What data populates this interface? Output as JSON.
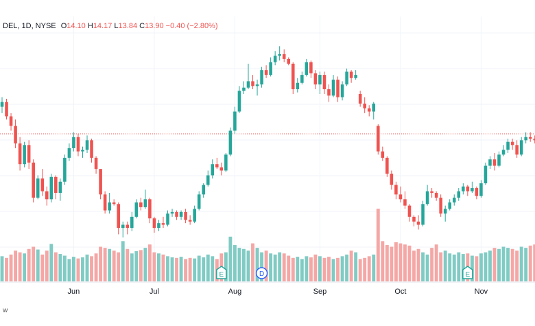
{
  "legend": {
    "symbol": "DEL, 1D, NYSE",
    "o_label": "O",
    "o_value": "14.10",
    "h_label": "H",
    "h_value": "14.17",
    "l_label": "L",
    "l_value": "13.84",
    "c_label": "C",
    "c_value": "13.90",
    "change": "−0.40 (−2.80%)"
  },
  "brand_text": "w",
  "colors": {
    "up": "#26a69a",
    "down": "#ef5350",
    "up_volume": "#80cbc4",
    "down_volume": "#f4a7a5",
    "grid": "#f0f3fa",
    "price_line": "#ef5350",
    "axis_text": "#131722"
  },
  "chart_data": {
    "type": "candlestick",
    "y_range": [
      13.0,
      26.0
    ],
    "price_line": 20.1,
    "x_axis": {
      "ticks": [
        {
          "label": "Jun",
          "index": 16
        },
        {
          "label": "Jul",
          "index": 34
        },
        {
          "label": "Aug",
          "index": 52
        },
        {
          "label": "Sep",
          "index": 71
        },
        {
          "label": "Oct",
          "index": 89
        },
        {
          "label": "Nov",
          "index": 107
        }
      ]
    },
    "markers": [
      {
        "label": "E",
        "index": 49
      },
      {
        "label": "D",
        "index": 58
      },
      {
        "label": "E",
        "index": 104
      }
    ],
    "ohlc": [
      [
        21.8,
        22.4,
        21.4,
        22.1
      ],
      [
        22.1,
        22.3,
        21.0,
        21.2
      ],
      [
        21.2,
        21.4,
        20.3,
        20.6
      ],
      [
        20.6,
        21.0,
        19.2,
        19.5
      ],
      [
        19.5,
        19.9,
        17.8,
        18.2
      ],
      [
        18.2,
        19.6,
        18.0,
        19.4
      ],
      [
        19.4,
        19.7,
        17.9,
        18.3
      ],
      [
        18.3,
        18.5,
        15.8,
        16.1
      ],
      [
        16.1,
        17.5,
        16.0,
        17.3
      ],
      [
        17.3,
        17.9,
        16.2,
        16.5
      ],
      [
        16.5,
        16.8,
        15.6,
        16.0
      ],
      [
        16.0,
        17.6,
        15.8,
        17.4
      ],
      [
        17.4,
        17.5,
        16.0,
        16.4
      ],
      [
        16.4,
        17.3,
        15.9,
        17.1
      ],
      [
        17.1,
        18.8,
        16.9,
        18.6
      ],
      [
        18.6,
        19.5,
        18.4,
        19.2
      ],
      [
        19.2,
        20.2,
        19.0,
        19.9
      ],
      [
        19.9,
        20.1,
        18.7,
        19.0
      ],
      [
        19.0,
        19.3,
        18.6,
        19.1
      ],
      [
        19.1,
        20.0,
        18.9,
        19.7
      ],
      [
        19.7,
        19.8,
        18.3,
        18.6
      ],
      [
        18.6,
        18.7,
        17.6,
        17.9
      ],
      [
        17.9,
        17.9,
        16.0,
        16.3
      ],
      [
        16.3,
        16.5,
        15.1,
        15.3
      ],
      [
        15.3,
        16.4,
        15.1,
        15.8
      ],
      [
        15.8,
        16.0,
        15.6,
        15.7
      ],
      [
        15.7,
        15.8,
        13.8,
        14.2
      ],
      [
        14.2,
        14.6,
        13.6,
        14.4
      ],
      [
        14.4,
        14.6,
        13.8,
        14.2
      ],
      [
        14.2,
        15.2,
        14.0,
        14.9
      ],
      [
        14.9,
        16.0,
        14.8,
        15.8
      ],
      [
        15.8,
        16.1,
        15.3,
        15.5
      ],
      [
        15.5,
        16.6,
        15.4,
        16.0
      ],
      [
        16.0,
        16.1,
        14.5,
        14.8
      ],
      [
        14.8,
        14.9,
        13.9,
        14.2
      ],
      [
        14.2,
        14.7,
        14.0,
        14.5
      ],
      [
        14.5,
        14.9,
        14.2,
        14.4
      ],
      [
        14.4,
        15.3,
        14.3,
        15.1
      ],
      [
        15.1,
        15.4,
        14.9,
        15.2
      ],
      [
        15.2,
        15.3,
        14.7,
        14.9
      ],
      [
        14.9,
        15.3,
        14.7,
        15.2
      ],
      [
        15.2,
        15.4,
        14.5,
        14.7
      ],
      [
        14.7,
        15.0,
        14.4,
        14.6
      ],
      [
        14.6,
        15.6,
        14.5,
        15.4
      ],
      [
        15.4,
        16.5,
        15.3,
        16.3
      ],
      [
        16.3,
        17.0,
        16.1,
        16.9
      ],
      [
        16.9,
        17.8,
        16.8,
        17.5
      ],
      [
        17.5,
        18.5,
        17.3,
        18.2
      ],
      [
        18.2,
        18.6,
        17.9,
        18.0
      ],
      [
        18.0,
        18.3,
        17.5,
        17.8
      ],
      [
        17.8,
        18.9,
        17.7,
        18.8
      ],
      [
        18.8,
        20.5,
        18.7,
        20.3
      ],
      [
        20.3,
        21.8,
        20.1,
        21.5
      ],
      [
        21.5,
        23.1,
        21.4,
        22.8
      ],
      [
        22.8,
        23.4,
        22.6,
        23.0
      ],
      [
        23.0,
        24.5,
        22.9,
        23.4
      ],
      [
        23.4,
        23.8,
        22.9,
        23.1
      ],
      [
        23.1,
        23.5,
        22.5,
        23.2
      ],
      [
        23.2,
        24.3,
        23.0,
        24.1
      ],
      [
        24.1,
        24.4,
        23.6,
        23.8
      ],
      [
        23.8,
        24.9,
        23.7,
        24.6
      ],
      [
        24.6,
        25.3,
        24.4,
        25.0
      ],
      [
        25.0,
        25.6,
        24.7,
        25.1
      ],
      [
        25.1,
        25.4,
        24.6,
        24.8
      ],
      [
        24.8,
        24.9,
        24.4,
        24.5
      ],
      [
        24.5,
        24.6,
        22.6,
        22.9
      ],
      [
        22.9,
        23.6,
        22.7,
        23.3
      ],
      [
        23.3,
        24.0,
        23.2,
        23.8
      ],
      [
        23.8,
        24.8,
        23.7,
        24.6
      ],
      [
        24.6,
        24.7,
        23.6,
        23.9
      ],
      [
        23.9,
        24.1,
        22.9,
        23.2
      ],
      [
        23.2,
        24.0,
        22.6,
        23.8
      ],
      [
        23.8,
        24.0,
        22.6,
        22.9
      ],
      [
        22.9,
        23.2,
        22.1,
        22.5
      ],
      [
        22.5,
        23.8,
        22.4,
        23.5
      ],
      [
        23.5,
        23.7,
        22.1,
        22.4
      ],
      [
        22.4,
        23.4,
        22.2,
        23.2
      ],
      [
        23.2,
        24.2,
        23.1,
        24.0
      ],
      [
        24.0,
        24.1,
        23.3,
        23.6
      ],
      [
        23.6,
        24.1,
        23.5,
        23.8
      ],
      [
        22.6,
        22.8,
        21.8,
        22.0
      ],
      [
        22.0,
        22.4,
        21.4,
        21.7
      ],
      [
        21.7,
        21.9,
        21.2,
        21.5
      ],
      [
        21.5,
        22.1,
        21.0,
        22.0
      ],
      [
        20.6,
        20.7,
        18.8,
        19.0
      ],
      [
        19.0,
        19.3,
        18.4,
        18.6
      ],
      [
        18.6,
        18.7,
        17.4,
        17.6
      ],
      [
        17.6,
        17.8,
        16.6,
        16.9
      ],
      [
        16.9,
        17.1,
        16.0,
        16.3
      ],
      [
        16.3,
        16.8,
        15.8,
        16.0
      ],
      [
        16.0,
        16.5,
        15.4,
        15.6
      ],
      [
        15.6,
        15.7,
        14.6,
        14.9
      ],
      [
        14.9,
        15.0,
        14.3,
        14.6
      ],
      [
        14.6,
        15.0,
        14.1,
        14.4
      ],
      [
        14.4,
        15.9,
        14.3,
        15.7
      ],
      [
        15.7,
        16.9,
        15.6,
        16.5
      ],
      [
        16.5,
        16.7,
        16.1,
        16.4
      ],
      [
        16.4,
        16.5,
        15.9,
        16.1
      ],
      [
        16.1,
        16.3,
        14.9,
        15.1
      ],
      [
        15.1,
        15.6,
        14.6,
        15.4
      ],
      [
        15.4,
        16.0,
        15.3,
        15.8
      ],
      [
        15.8,
        16.3,
        15.6,
        16.1
      ],
      [
        16.1,
        16.7,
        15.9,
        16.5
      ],
      [
        16.5,
        17.0,
        16.3,
        16.8
      ],
      [
        16.8,
        16.9,
        16.2,
        16.5
      ],
      [
        16.5,
        17.1,
        16.4,
        16.7
      ],
      [
        16.7,
        16.8,
        16.0,
        16.2
      ],
      [
        16.2,
        17.2,
        16.1,
        17.0
      ],
      [
        17.0,
        18.3,
        16.9,
        18.1
      ],
      [
        18.1,
        18.7,
        17.9,
        18.5
      ],
      [
        18.5,
        18.9,
        17.8,
        18.1
      ],
      [
        18.1,
        19.0,
        18.0,
        18.8
      ],
      [
        18.8,
        19.4,
        18.7,
        19.1
      ],
      [
        19.1,
        19.8,
        18.9,
        19.6
      ],
      [
        19.6,
        19.8,
        19.1,
        19.4
      ],
      [
        19.4,
        19.7,
        18.6,
        18.8
      ],
      [
        18.8,
        19.9,
        18.7,
        19.7
      ],
      [
        19.7,
        20.2,
        19.5,
        19.9
      ],
      [
        19.9,
        20.2,
        19.6,
        19.8
      ],
      [
        19.8,
        20.0,
        19.5,
        19.7
      ]
    ],
    "volume": [
      0.45,
      0.42,
      0.48,
      0.55,
      0.52,
      0.5,
      0.58,
      0.62,
      0.57,
      0.48,
      0.55,
      0.67,
      0.52,
      0.49,
      0.46,
      0.4,
      0.44,
      0.41,
      0.43,
      0.48,
      0.45,
      0.5,
      0.62,
      0.6,
      0.58,
      0.55,
      0.52,
      0.72,
      0.58,
      0.5,
      0.54,
      0.56,
      0.6,
      0.66,
      0.52,
      0.5,
      0.48,
      0.45,
      0.43,
      0.42,
      0.44,
      0.4,
      0.42,
      0.41,
      0.46,
      0.43,
      0.48,
      0.45,
      0.4,
      0.5,
      0.52,
      0.8,
      0.65,
      0.6,
      0.58,
      0.55,
      0.68,
      0.6,
      0.52,
      0.55,
      0.5,
      0.48,
      0.52,
      0.5,
      0.46,
      0.42,
      0.44,
      0.4,
      0.45,
      0.43,
      0.48,
      0.45,
      0.42,
      0.44,
      0.4,
      0.42,
      0.45,
      0.48,
      0.55,
      0.52,
      0.4,
      0.42,
      0.45,
      0.48,
      1.3,
      0.72,
      0.65,
      0.62,
      0.7,
      0.68,
      0.66,
      0.64,
      0.55,
      0.58,
      0.52,
      0.48,
      0.6,
      0.66,
      0.52,
      0.55,
      0.5,
      0.48,
      0.52,
      0.49,
      0.5,
      0.46,
      0.45,
      0.5,
      0.52,
      0.55,
      0.6,
      0.58,
      0.62,
      0.6,
      0.58,
      0.55,
      0.62,
      0.6,
      0.64,
      0.66
    ],
    "volume_scale_max": 1.35
  }
}
